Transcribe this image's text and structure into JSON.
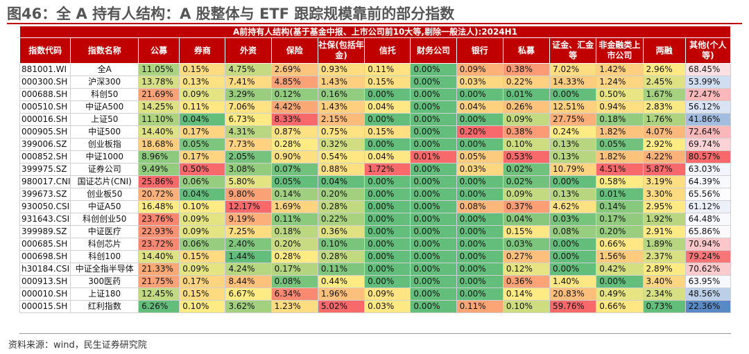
{
  "title": "图46：全 A 持有人结构：A 股整体与 ETF 跟踪规模靠前的部分指数",
  "table": {
    "banner": "A前持有人结构(基于基金中报、上市公司前10大等,剔除一般法人):2024H1",
    "columns": [
      "指数代码",
      "指数名称",
      "公募",
      "券商",
      "外资",
      "保险",
      "社保(包括年金)",
      "信托",
      "财务公司",
      "银行",
      "私募",
      "证金、汇金等",
      "非金融类上市公司",
      "两融",
      "其他(个人等)"
    ],
    "rows": [
      {
        "code": "881001.WI",
        "name": "全A",
        "values": [
          "11.05%",
          "0.15%",
          "4.75%",
          "2.69%",
          "0.93%",
          "0.11%",
          "0.00%",
          "0.09%",
          "0.38%",
          "7.02%",
          "1.42%",
          "2.96%",
          "68.45%"
        ]
      },
      {
        "code": "000300.SH",
        "name": "沪深300",
        "values": [
          "13.78%",
          "0.13%",
          "7.41%",
          "4.85%",
          "1.43%",
          "0.15%",
          "0.00%",
          "0.03%",
          "0.22%",
          "14.33%",
          "1.24%",
          "2.45%",
          "53.99%"
        ]
      },
      {
        "code": "000688.SH",
        "name": "科创50",
        "values": [
          "21.69%",
          "0.09%",
          "3.29%",
          "0.12%",
          "0.16%",
          "0.00%",
          "0.00%",
          "0.00%",
          "0.01%",
          "0.00%",
          "0.50%",
          "1.67%",
          "72.47%"
        ]
      },
      {
        "code": "000510.SH",
        "name": "中证A500",
        "values": [
          "14.25%",
          "0.11%",
          "7.06%",
          "4.42%",
          "1.43%",
          "0.04%",
          "0.00%",
          "0.04%",
          "0.26%",
          "12.51%",
          "0.94%",
          "2.83%",
          "56.12%"
        ]
      },
      {
        "code": "000016.SH",
        "name": "上证50",
        "values": [
          "11.10%",
          "0.04%",
          "6.73%",
          "8.33%",
          "2.15%",
          "0.00%",
          "0.00%",
          "0.00%",
          "0.09%",
          "27.75%",
          "0.18%",
          "1.76%",
          "41.86%"
        ]
      },
      {
        "code": "000905.SH",
        "name": "中证500",
        "values": [
          "14.40%",
          "0.17%",
          "4.31%",
          "0.87%",
          "0.75%",
          "0.15%",
          "0.00%",
          "0.20%",
          "0.38%",
          "0.24%",
          "1.82%",
          "4.07%",
          "72.64%"
        ]
      },
      {
        "code": "399006.SZ",
        "name": "创业板指",
        "values": [
          "18.68%",
          "0.05%",
          "7.73%",
          "0.28%",
          "0.32%",
          "0.00%",
          "0.00%",
          "0.00%",
          "0.10%",
          "0.13%",
          "0.05%",
          "2.92%",
          "69.74%"
        ]
      },
      {
        "code": "000852.SH",
        "name": "中证1000",
        "values": [
          "8.96%",
          "0.17%",
          "2.05%",
          "0.90%",
          "0.54%",
          "0.04%",
          "0.01%",
          "0.05%",
          "0.53%",
          "0.13%",
          "1.82%",
          "4.22%",
          "80.57%"
        ]
      },
      {
        "code": "399975.SZ",
        "name": "证券公司",
        "values": [
          "9.49%",
          "0.50%",
          "3.08%",
          "0.07%",
          "0.88%",
          "1.72%",
          "0.00%",
          "0.03%",
          "0.02%",
          "10.79%",
          "4.51%",
          "5.87%",
          "63.03%"
        ]
      },
      {
        "code": "980017.CNI",
        "name": "国证芯片(CNI)",
        "values": [
          "25.86%",
          "0.06%",
          "5.80%",
          "0.05%",
          "0.04%",
          "0.00%",
          "0.00%",
          "0.00%",
          "0.02%",
          "0.00%",
          "0.58%",
          "3.19%",
          "64.39%"
        ]
      },
      {
        "code": "399673.SZ",
        "name": "创业板50",
        "values": [
          "20.72%",
          "0.04%",
          "9.80%",
          "0.14%",
          "0.20%",
          "0.00%",
          "0.00%",
          "0.00%",
          "0.09%",
          "0.13%",
          "0.01%",
          "3.30%",
          "65.56%"
        ]
      },
      {
        "code": "930050.CSI",
        "name": "中证A50",
        "values": [
          "16.48%",
          "0.10%",
          "12.17%",
          "1.69%",
          "0.28%",
          "0.00%",
          "0.00%",
          "0.08%",
          "0.37%",
          "4.62%",
          "0.14%",
          "2.95%",
          "61.12%"
        ]
      },
      {
        "code": "931643.CSI",
        "name": "科创创业50",
        "values": [
          "23.76%",
          "0.09%",
          "9.19%",
          "0.11%",
          "0.22%",
          "0.00%",
          "0.00%",
          "0.00%",
          "0.04%",
          "0.03%",
          "0.17%",
          "1.92%",
          "64.48%"
        ]
      },
      {
        "code": "399989.SZ",
        "name": "中证医疗",
        "values": [
          "22.93%",
          "0.09%",
          "7.25%",
          "0.18%",
          "0.36%",
          "0.00%",
          "0.00%",
          "0.00%",
          "0.15%",
          "0.08%",
          "0.20%",
          "2.91%",
          "65.86%"
        ]
      },
      {
        "code": "000685.SH",
        "name": "科创芯片",
        "values": [
          "23.72%",
          "0.06%",
          "2.40%",
          "0.20%",
          "0.10%",
          "0.00%",
          "0.00%",
          "0.00%",
          "0.03%",
          "0.00%",
          "0.66%",
          "1.89%",
          "70.94%"
        ]
      },
      {
        "code": "000698.SH",
        "name": "科创100",
        "values": [
          "14.40%",
          "0.15%",
          "1.44%",
          "0.28%",
          "0.28%",
          "0.00%",
          "0.00%",
          "0.00%",
          "0.27%",
          "0.00%",
          "1.56%",
          "2.37%",
          "79.24%"
        ]
      },
      {
        "code": "h30184.CSI",
        "name": "中证全指半导体",
        "values": [
          "21.33%",
          "0.09%",
          "4.24%",
          "0.17%",
          "0.11%",
          "0.00%",
          "0.00%",
          "0.00%",
          "0.12%",
          "0.00%",
          "0.42%",
          "2.89%",
          "70.62%"
        ]
      },
      {
        "code": "000913.SH",
        "name": "300医药",
        "values": [
          "21.75%",
          "0.17%",
          "8.44%",
          "0.08%",
          "0.44%",
          "0.00%",
          "0.00%",
          "0.00%",
          "0.36%",
          "1.40%",
          "0.00%",
          "3.40%",
          "63.95%"
        ]
      },
      {
        "code": "000010.SH",
        "name": "上证180",
        "values": [
          "12.45%",
          "0.15%",
          "6.67%",
          "6.34%",
          "1.96%",
          "0.09%",
          "0.00%",
          "0.00%",
          "0.14%",
          "20.83%",
          "0.49%",
          "2.34%",
          "48.56%"
        ]
      },
      {
        "code": "000015.SH",
        "name": "红利指数",
        "values": [
          "6.26%",
          "0.10%",
          "3.62%",
          "1.23%",
          "5.02%",
          "0.03%",
          "0.00%",
          "0.11%",
          "0.10%",
          "59.76%",
          "0.66%",
          "0.73%",
          "22.36%"
        ]
      }
    ]
  },
  "source": "资料来源：wind，民生证券研究院",
  "colors": {
    "header_bg": "#c00000",
    "scale_red": "#f8696b",
    "scale_yellow": "#ffeb84",
    "scale_green": "#63be7b",
    "scale_blue": "#5a8ac6",
    "scale_white": "#fcfcff"
  }
}
